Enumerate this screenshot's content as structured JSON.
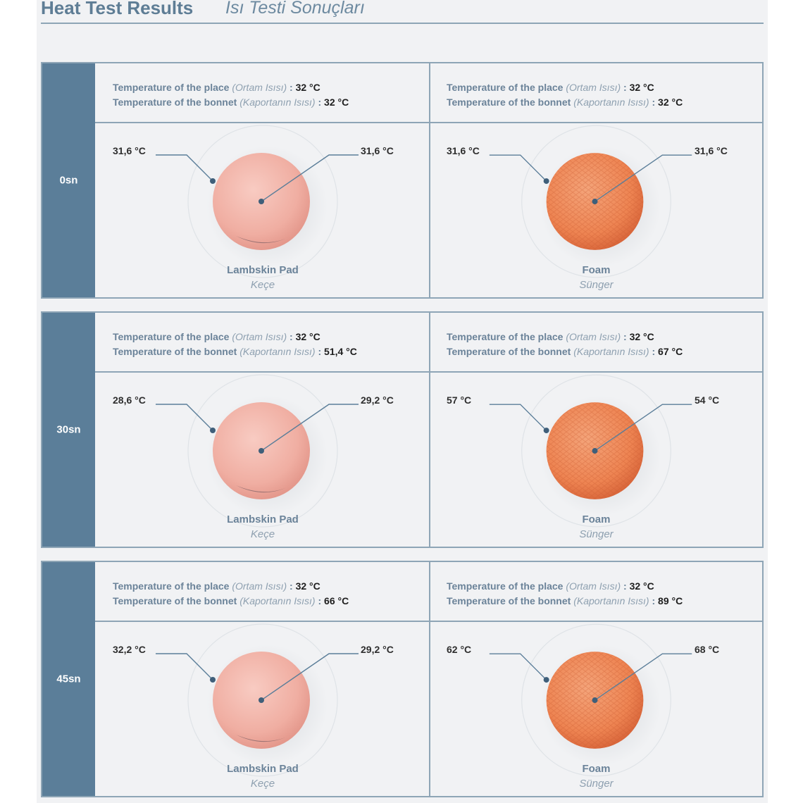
{
  "header": {
    "title_en": "Heat Test Results",
    "title_tr": "Isı Testi Sonuçları"
  },
  "labels": {
    "place": "Temperature of the place",
    "place_tr": "(Ortam Isısı)",
    "bonnet": "Temperature of the bonnet",
    "bonnet_tr": "(Kaportanın Isısı)",
    "sep": " : "
  },
  "pads": {
    "lambskin": {
      "name": "Lambskin Pad",
      "name_tr": "Keçe"
    },
    "foam": {
      "name": "Foam",
      "name_tr": "Sünger"
    }
  },
  "sections": [
    {
      "time": "0sn",
      "lambskin": {
        "place_temp": "32 °C",
        "bonnet_temp": "32 °C",
        "reading_left": "31,6 °C",
        "reading_right": "31,6 °C"
      },
      "foam": {
        "place_temp": "32 °C",
        "bonnet_temp": "32 °C",
        "reading_left": "31,6 °C",
        "reading_right": "31,6 °C"
      }
    },
    {
      "time": "30sn",
      "lambskin": {
        "place_temp": "32 °C",
        "bonnet_temp": "51,4 °C",
        "reading_left": "28,6 °C",
        "reading_right": "29,2 °C"
      },
      "foam": {
        "place_temp": "32 °C",
        "bonnet_temp": "67 °C",
        "reading_left": "57 °C",
        "reading_right": "54 °C"
      }
    },
    {
      "time": "45sn",
      "lambskin": {
        "place_temp": "32 °C",
        "bonnet_temp": "66 °C",
        "reading_left": "32,2 °C",
        "reading_right": "29,2 °C"
      },
      "foam": {
        "place_temp": "32 °C",
        "bonnet_temp": "89 °C",
        "reading_left": "62 °C",
        "reading_right": "68 °C"
      }
    }
  ],
  "colors": {
    "accent": "#5b7e99",
    "lambskin": "#f0aea2",
    "foam": "#ee8452"
  }
}
